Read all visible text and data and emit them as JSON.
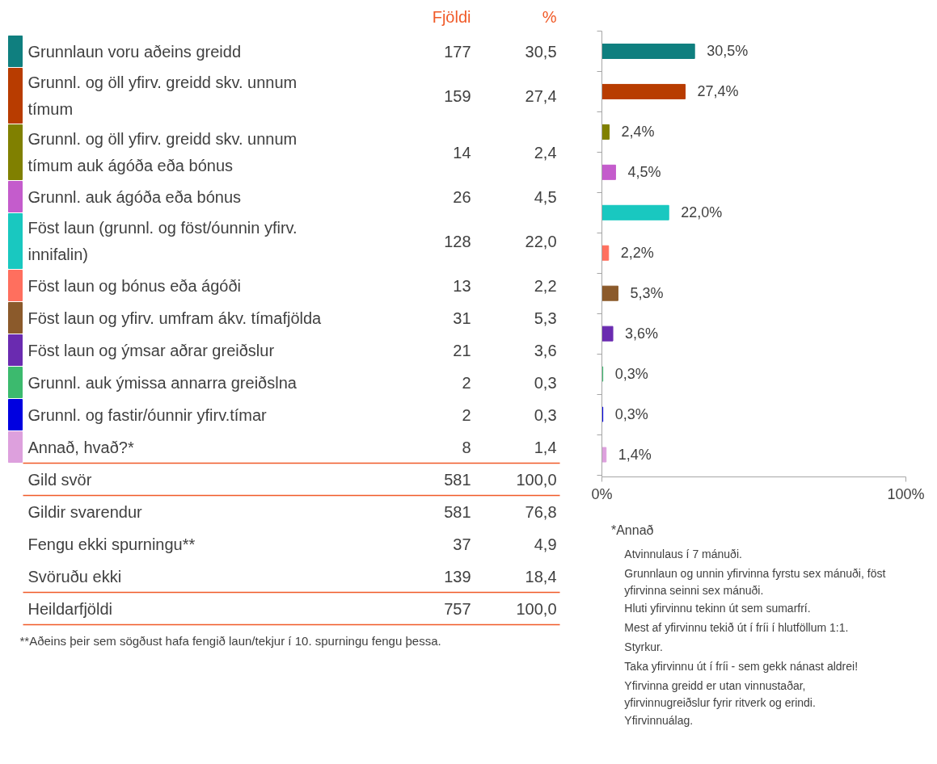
{
  "chart_data": [
    {
      "type": "other",
      "categories": [
        "Grunnlaun voru aðeins greidd",
        "Grunnl. og öll yfirv. greidd skv. unnum tímum",
        "Grunnl. og öll yfirv. greidd skv. unnum tímum auk ágóða eða bónus",
        "Grunnl. auk ágóða eða bónus",
        "Föst laun (grunnl. og föst/óunnin yfirv. innifalin)",
        "Föst laun og bónus eða ágóði",
        "Föst laun og yfirv. umfram ákv. tímafjölda",
        "Föst laun og ýmsar aðrar greiðslur",
        "Grunnl. auk ýmissa annarra greiðslna",
        "Grunnl. og fastir/óunnir yfirv.tímar",
        "Annað, hvað?*",
        "Gild svör",
        "Gildir svarendur",
        "Fengu ekki spurningu**",
        "Svöruðu ekki",
        "Heildarfjöldi"
      ],
      "colors": [
        "#0f7f7f",
        "#b83c00",
        "#808000",
        "#c45ccc",
        "#19c8c0",
        "#ff6f5e",
        "#8b5a2b",
        "#6a2bb0",
        "#3cba6e",
        "#0000e0",
        "#dda0dd",
        null,
        null,
        null,
        null,
        null
      ],
      "series": [
        {
          "name": "Fjöldi",
          "values": [
            177,
            159,
            14,
            26,
            128,
            13,
            31,
            21,
            2,
            2,
            8,
            581,
            581,
            37,
            139,
            757
          ]
        },
        {
          "name": "%",
          "values": [
            30.5,
            27.4,
            2.4,
            4.5,
            22.0,
            2.2,
            5.3,
            3.6,
            0.3,
            0.3,
            1.4,
            100.0,
            76.8,
            4.9,
            18.4,
            100.0
          ],
          "value_labels": [
            "30,5",
            "27,4",
            "2,4",
            "4,5",
            "22,0",
            "2,2",
            "5,3",
            "3,6",
            "0,3",
            "0,3",
            "1,4",
            "100,0",
            "76,8",
            "4,9",
            "18,4",
            "100,0"
          ]
        }
      ],
      "data_labels": true,
      "annotations": [
        "**Aðeins þeir sem sögðust hafa fengið laun/tekjur í 10. spurningu fengu þessa."
      ]
    },
    {
      "type": "bar",
      "orientation": "horizontal",
      "categories": [
        null,
        null,
        null,
        null,
        null,
        null,
        null,
        null,
        null,
        null,
        null
      ],
      "values": [
        30.5,
        27.4,
        2.4,
        4.5,
        22.0,
        2.2,
        5.3,
        3.6,
        0.3,
        0.3,
        1.4
      ],
      "colors": [
        "#0f7f7f",
        "#b83c00",
        "#808000",
        "#c45ccc",
        "#19c8c0",
        "#ff6f5e",
        "#8b5a2b",
        "#6a2bb0",
        "#3cba6e",
        "#0000e0",
        "#dda0dd"
      ],
      "value_labels": [
        "30,5%",
        "27,4%",
        "2,4%",
        "4,5%",
        "22,0%",
        "2,2%",
        "5,3%",
        "3,6%",
        "0,3%",
        "0,3%",
        "1,4%"
      ],
      "xlim": [
        0,
        100
      ],
      "xticks": [
        {
          "value": 0,
          "label": "0%"
        },
        {
          "value": 100,
          "label": "100%"
        }
      ],
      "tick_labels": "x",
      "annotations": [
        "*Annað",
        "Atvinnulaus í 7 mánuði.",
        "Grunnlaun og unnin yfirvinna fyrstu sex mánuði, föst yfirvinna seinni sex mánuði.",
        "Hluti yfirvinnu tekinn út sem sumarfrí.",
        "Mest af yfirvinnu tekið út í fríi í hlutföllum 1:1.",
        "Styrkur.",
        "Taka yfirvinnu út í fríi - sem gekk nánast aldrei!",
        "Yfirvinna greidd er utan vinnustaðar, yfirvinnugreiðslur fyrir ritverk og erindi.",
        "Yfirvinnuálag."
      ]
    }
  ]
}
